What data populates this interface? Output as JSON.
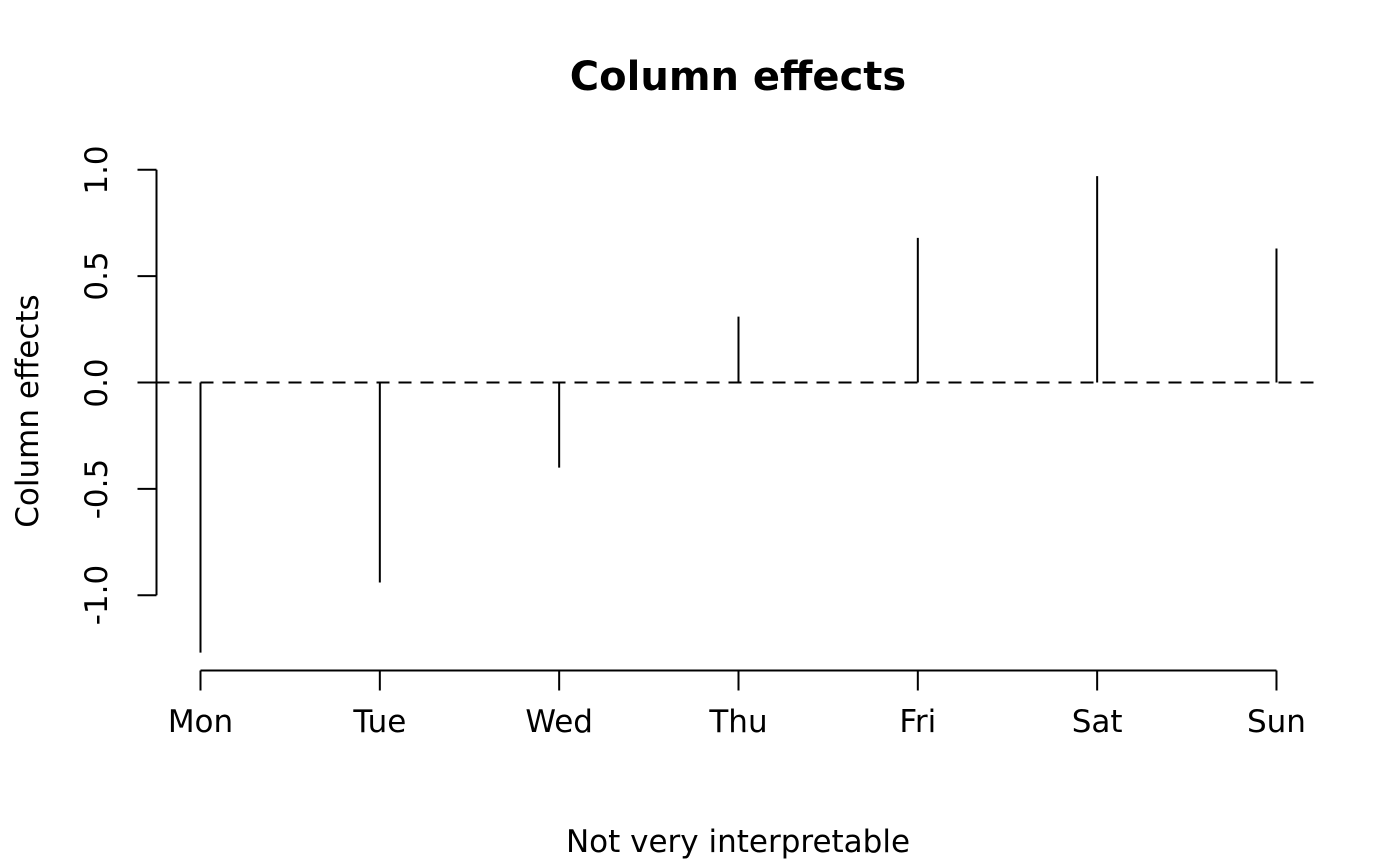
{
  "chart_data": {
    "type": "bar",
    "subtype": "spike-plot",
    "title": "Column effects",
    "subtitle": "Not very interpretable",
    "xlabel": "",
    "ylabel": "Column effects",
    "categories": [
      "Mon",
      "Tue",
      "Wed",
      "Thu",
      "Fri",
      "Sat",
      "Sun"
    ],
    "values": [
      -1.27,
      -0.94,
      -0.4,
      0.31,
      0.68,
      0.97,
      0.63
    ],
    "ylim": [
      -1.0,
      1.0
    ],
    "yticks": [
      1.0,
      0.5,
      0.0,
      -0.5,
      -1.0
    ],
    "ytick_labels": [
      "1.0",
      "0.5",
      "0.0",
      "-0.5",
      "-1.0"
    ],
    "reference_line": {
      "y": 0,
      "style": "dashed"
    },
    "grid": false,
    "legend": false,
    "colors": {
      "foreground": "#000000",
      "background": "#ffffff"
    }
  }
}
